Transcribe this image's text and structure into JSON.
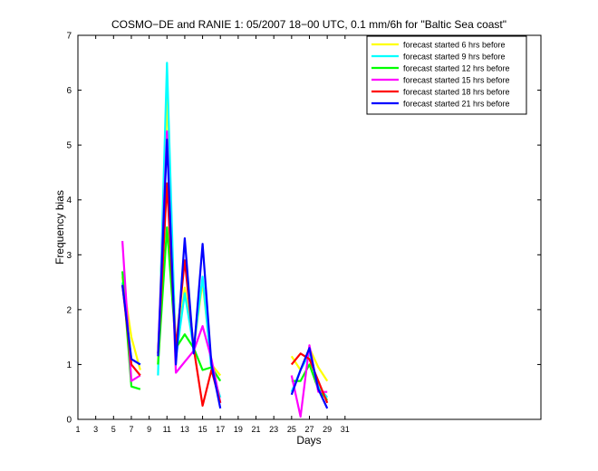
{
  "chart_data": {
    "type": "line",
    "title": "COSMO−DE and RANIE 1: 05/2007 18−00 UTC, 0.1 mm/6h for \"Baltic Sea coast\"",
    "xlabel": "Days",
    "ylabel": "Frequency bias",
    "xlim": [
      1,
      53
    ],
    "ylim": [
      0,
      7
    ],
    "xticks": [
      1,
      3,
      5,
      7,
      9,
      11,
      13,
      15,
      17,
      19,
      21,
      23,
      25,
      27,
      29,
      31
    ],
    "yticks": [
      0,
      1,
      2,
      3,
      4,
      5,
      6,
      7
    ],
    "grid": false,
    "legend_position": "top-right",
    "series": [
      {
        "name": "forecast started 6 hrs before",
        "color": "#ffff00",
        "points": [
          [
            6,
            2.6
          ],
          [
            7,
            1.5
          ],
          [
            8,
            0.9
          ],
          null,
          [
            10,
            1.0
          ],
          [
            11,
            5.9
          ],
          [
            12,
            1.2
          ],
          [
            13,
            2.4
          ],
          [
            14,
            1.3
          ],
          [
            15,
            2.5
          ],
          [
            16,
            1.0
          ],
          [
            17,
            0.8
          ],
          null,
          [
            25,
            1.15
          ],
          [
            26,
            0.9
          ],
          [
            27,
            1.3
          ],
          [
            28,
            0.95
          ],
          [
            29,
            0.7
          ]
        ]
      },
      {
        "name": "forecast started 9 hrs before",
        "color": "#00ffff",
        "points": [
          [
            6,
            2.5
          ],
          [
            7,
            1.1
          ],
          [
            8,
            1.0
          ],
          null,
          [
            10,
            0.8
          ],
          [
            11,
            6.5
          ],
          [
            12,
            1.1
          ],
          [
            13,
            2.3
          ],
          [
            14,
            1.3
          ],
          [
            15,
            2.6
          ],
          [
            16,
            0.9
          ],
          [
            17,
            0.4
          ],
          null,
          [
            25,
            0.5
          ],
          [
            26,
            0.9
          ],
          [
            27,
            1.2
          ],
          [
            28,
            0.6
          ],
          [
            29,
            0.4
          ]
        ]
      },
      {
        "name": "forecast started 12 hrs before",
        "color": "#00ff00",
        "points": [
          [
            6,
            2.7
          ],
          [
            7,
            0.6
          ],
          [
            8,
            0.55
          ],
          null,
          [
            10,
            1.0
          ],
          [
            11,
            3.5
          ],
          [
            12,
            1.3
          ],
          [
            13,
            1.55
          ],
          [
            14,
            1.3
          ],
          [
            15,
            0.9
          ],
          [
            16,
            0.95
          ],
          [
            17,
            0.7
          ],
          null,
          [
            25,
            0.7
          ],
          [
            26,
            0.7
          ],
          [
            27,
            1.0
          ],
          [
            28,
            0.55
          ],
          [
            29,
            0.35
          ]
        ]
      },
      {
        "name": "forecast started 15 hrs before",
        "color": "#ff00ff",
        "points": [
          [
            6,
            3.25
          ],
          [
            7,
            0.7
          ],
          [
            8,
            0.8
          ],
          null,
          [
            10,
            1.2
          ],
          [
            11,
            5.25
          ],
          [
            12,
            0.85
          ],
          [
            13,
            1.05
          ],
          [
            14,
            1.25
          ],
          [
            15,
            1.7
          ],
          [
            16,
            1.1
          ],
          [
            17,
            0.3
          ],
          null,
          [
            25,
            0.8
          ],
          [
            26,
            0.05
          ],
          [
            27,
            1.35
          ],
          [
            28,
            0.5
          ],
          [
            29,
            0.5
          ]
        ]
      },
      {
        "name": "forecast started 18 hrs before",
        "color": "#ff0000",
        "points": [
          [
            6,
            2.45
          ],
          [
            7,
            1.0
          ],
          [
            8,
            0.8
          ],
          null,
          [
            10,
            1.2
          ],
          [
            11,
            4.3
          ],
          [
            12,
            1.3
          ],
          [
            13,
            2.9
          ],
          [
            14,
            1.3
          ],
          [
            15,
            0.25
          ],
          [
            16,
            0.9
          ],
          [
            17,
            0.3
          ],
          null,
          [
            25,
            1.0
          ],
          [
            26,
            1.2
          ],
          [
            27,
            1.1
          ],
          [
            28,
            0.7
          ],
          [
            29,
            0.3
          ]
        ]
      },
      {
        "name": "forecast started 21 hrs before",
        "color": "#0000ff",
        "points": [
          [
            6,
            2.45
          ],
          [
            7,
            1.1
          ],
          [
            8,
            1.0
          ],
          null,
          [
            10,
            1.15
          ],
          [
            11,
            5.1
          ],
          [
            12,
            1.0
          ],
          [
            13,
            3.3
          ],
          [
            14,
            1.2
          ],
          [
            15,
            3.2
          ],
          [
            16,
            1.0
          ],
          [
            17,
            0.2
          ],
          null,
          [
            25,
            0.45
          ],
          [
            26,
            0.9
          ],
          [
            27,
            1.3
          ],
          [
            28,
            0.55
          ],
          [
            29,
            0.2
          ]
        ]
      }
    ]
  }
}
